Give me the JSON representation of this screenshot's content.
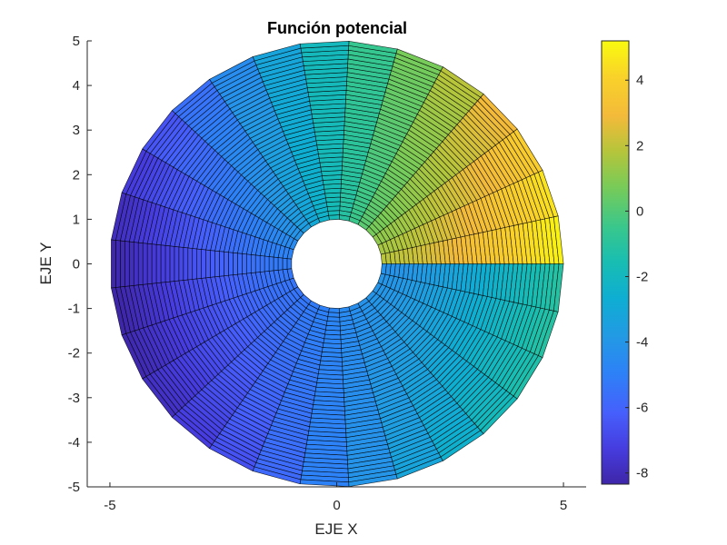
{
  "chart_data": {
    "type": "surface-polar-pseudocolor",
    "title": "Función potencial",
    "xlabel": "EJE X",
    "ylabel": "EJE Y",
    "xlim": [
      -5.5,
      5.5
    ],
    "ylim": [
      -5,
      5
    ],
    "xticks": [
      -5,
      0,
      5
    ],
    "xtick_labels": [
      "-5",
      "0",
      "5"
    ],
    "yticks": [
      5,
      4,
      3,
      2,
      1,
      0,
      -1,
      -2,
      -3,
      -4,
      -5
    ],
    "ytick_labels": [
      "5",
      "4",
      "3",
      "2",
      "1",
      "0",
      "-1",
      "-2",
      "-3",
      "-4",
      "-5"
    ],
    "grid": false,
    "function": "phi = (r + 1/r)*cos(theta) - theta",
    "domain": {
      "r_min": 1,
      "r_max": 5,
      "r_steps": 40,
      "theta_min_deg": 0,
      "theta_max_deg": 360,
      "theta_steps": 29
    },
    "value_samples": [
      {
        "r": 5,
        "theta_deg": 0,
        "phi": 5.2
      },
      {
        "r": 5,
        "theta_deg": 45,
        "phi": 2.89
      },
      {
        "r": 5,
        "theta_deg": 90,
        "phi": -1.57
      },
      {
        "r": 5,
        "theta_deg": 180,
        "phi": -8.34
      },
      {
        "r": 5,
        "theta_deg": 270,
        "phi": -4.71
      },
      {
        "r": 5,
        "theta_deg": 360,
        "phi": -1.08
      },
      {
        "r": 1,
        "theta_deg": 0,
        "phi": 2.0
      },
      {
        "r": 1,
        "theta_deg": 360,
        "phi": -4.28
      }
    ],
    "colorbar": {
      "colormap": "parula",
      "range": [
        -8.34,
        5.2
      ],
      "ticks": [
        4,
        2,
        0,
        -2,
        -4,
        -6,
        -8
      ],
      "tick_labels": [
        "4",
        "2",
        "0",
        "-2",
        "-4",
        "-6",
        "-8"
      ],
      "position": "right"
    },
    "edge_color": "#000000",
    "inner_hole_radius": 1
  }
}
